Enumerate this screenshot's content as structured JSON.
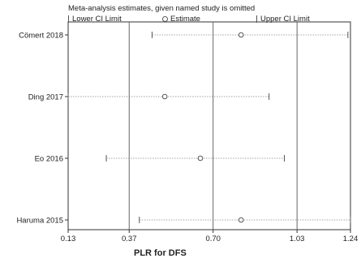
{
  "chart_data": {
    "type": "forest",
    "title": "Meta-analysis estimates, given named study is omitted",
    "legend": {
      "lower": "Lower CI Limit",
      "estimate": "Estimate",
      "upper": "Upper CI Limit"
    },
    "xlabel": "PLR for DFS",
    "xticks": [
      "0.13",
      "0.37",
      "0.70",
      "1.03",
      "1.24"
    ],
    "xlim": [
      0.13,
      1.24
    ],
    "reference_lines": [
      0.37,
      0.7,
      1.03
    ],
    "studies": [
      {
        "name": "Cömert 2018",
        "lower": 0.46,
        "estimate": 0.81,
        "upper": 1.23
      },
      {
        "name": "Ding 2017",
        "lower": 0.13,
        "estimate": 0.51,
        "upper": 0.92
      },
      {
        "name": "Eo 2016",
        "lower": 0.28,
        "estimate": 0.65,
        "upper": 0.98
      },
      {
        "name": "Haruma 2015",
        "lower": 0.41,
        "estimate": 0.81,
        "upper": 1.24
      }
    ]
  }
}
